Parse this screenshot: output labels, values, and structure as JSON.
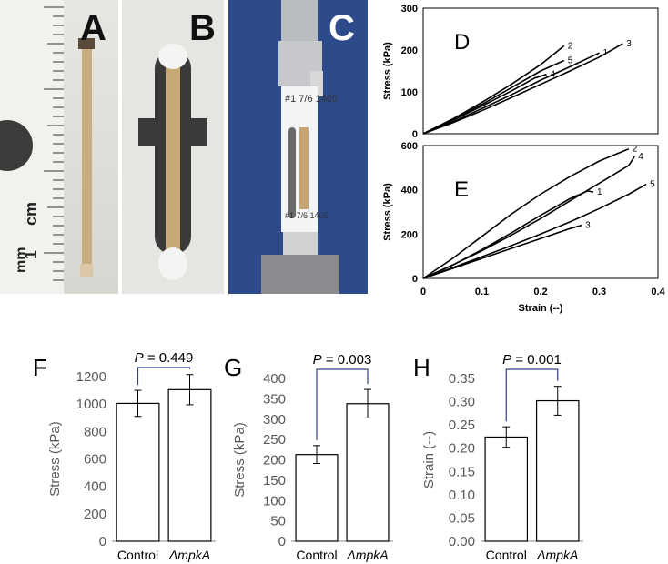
{
  "panels": {
    "a": {
      "letter": "A",
      "scale_mm": "mm",
      "scale_cm": "cm",
      "scale_num": "1"
    },
    "b": {
      "letter": "B"
    },
    "c": {
      "letter": "C",
      "note_top": "#1 7/6 1405",
      "note_bottom": "#1 7/6 1405"
    }
  },
  "chart_data": [
    {
      "id": "D",
      "type": "line",
      "ylabel": "Stress (kPa)",
      "xlim": [
        0,
        0.4
      ],
      "ylim": [
        0,
        300
      ],
      "yticks": [
        0,
        100,
        200,
        300
      ],
      "series": [
        {
          "label": "1",
          "x": [
            0,
            0.05,
            0.1,
            0.15,
            0.2,
            0.25,
            0.3
          ],
          "y": [
            0,
            28,
            60,
            93,
            128,
            160,
            193
          ]
        },
        {
          "label": "2",
          "x": [
            0,
            0.05,
            0.1,
            0.15,
            0.2,
            0.24
          ],
          "y": [
            0,
            35,
            75,
            118,
            165,
            210
          ]
        },
        {
          "label": "3",
          "x": [
            0,
            0.05,
            0.1,
            0.15,
            0.2,
            0.25,
            0.3,
            0.34
          ],
          "y": [
            0,
            26,
            55,
            86,
            118,
            150,
            183,
            215
          ]
        },
        {
          "label": "4",
          "x": [
            0,
            0.05,
            0.1,
            0.15,
            0.19,
            0.21
          ],
          "y": [
            0,
            32,
            66,
            102,
            133,
            142
          ]
        },
        {
          "label": "5",
          "x": [
            0,
            0.05,
            0.1,
            0.15,
            0.2,
            0.24
          ],
          "y": [
            0,
            33,
            70,
            110,
            150,
            175
          ]
        }
      ]
    },
    {
      "id": "E",
      "type": "line",
      "xlabel": "Strain (--)",
      "ylabel": "Stress (kPa)",
      "xlim": [
        0,
        0.4
      ],
      "ylim": [
        0,
        600
      ],
      "xticks": [
        0,
        0.1,
        0.2,
        0.3,
        0.4
      ],
      "yticks": [
        0,
        200,
        400,
        600
      ],
      "series": [
        {
          "label": "1",
          "x": [
            0,
            0.05,
            0.1,
            0.15,
            0.2,
            0.25,
            0.28,
            0.29
          ],
          "y": [
            0,
            60,
            130,
            205,
            285,
            360,
            395,
            390
          ]
        },
        {
          "label": "2",
          "x": [
            0,
            0.05,
            0.1,
            0.15,
            0.2,
            0.25,
            0.3,
            0.35
          ],
          "y": [
            0,
            90,
            190,
            290,
            380,
            460,
            530,
            585
          ]
        },
        {
          "label": "3",
          "x": [
            0,
            0.05,
            0.1,
            0.15,
            0.2,
            0.25,
            0.27
          ],
          "y": [
            0,
            45,
            90,
            135,
            180,
            225,
            240
          ]
        },
        {
          "label": "4",
          "x": [
            0,
            0.05,
            0.1,
            0.15,
            0.19,
            0.2,
            0.25,
            0.3,
            0.35,
            0.36
          ],
          "y": [
            0,
            60,
            125,
            195,
            255,
            270,
            350,
            430,
            510,
            550
          ]
        },
        {
          "label": "5",
          "x": [
            0,
            0.05,
            0.1,
            0.15,
            0.2,
            0.25,
            0.3,
            0.35,
            0.38
          ],
          "y": [
            0,
            48,
            98,
            148,
            200,
            255,
            315,
            380,
            425
          ]
        }
      ]
    },
    {
      "id": "F",
      "type": "bar",
      "categories": [
        "Control",
        "ΔmpkA"
      ],
      "values": [
        1005,
        1105
      ],
      "errors": [
        95,
        110
      ],
      "ylabel": "Stress (kPa)",
      "ylim": [
        0,
        1200
      ],
      "yticks": [
        "0",
        "200",
        "400",
        "600",
        "800",
        "1000",
        "1200"
      ],
      "p_label": "P",
      "p_value": " = 0.449"
    },
    {
      "id": "G",
      "type": "bar",
      "categories": [
        "Control",
        "ΔmpkA"
      ],
      "values": [
        213,
        338
      ],
      "errors": [
        22,
        35
      ],
      "ylabel": "Stress (kPa)",
      "ylim": [
        0,
        400
      ],
      "yticks": [
        "0",
        "50",
        "100",
        "150",
        "200",
        "250",
        "300",
        "350",
        "400"
      ],
      "p_label": "P",
      "p_value": " = 0.003"
    },
    {
      "id": "H",
      "type": "bar",
      "categories": [
        "Control",
        "ΔmpkA"
      ],
      "values": [
        0.224,
        0.302
      ],
      "errors": [
        0.022,
        0.031
      ],
      "ylabel": "Strain (--)",
      "ylim": [
        0,
        0.35
      ],
      "yticks": [
        "0.00",
        "0.05",
        "0.10",
        "0.15",
        "0.20",
        "0.25",
        "0.30",
        "0.35"
      ],
      "p_label": "P",
      "p_value": " = 0.001"
    }
  ]
}
